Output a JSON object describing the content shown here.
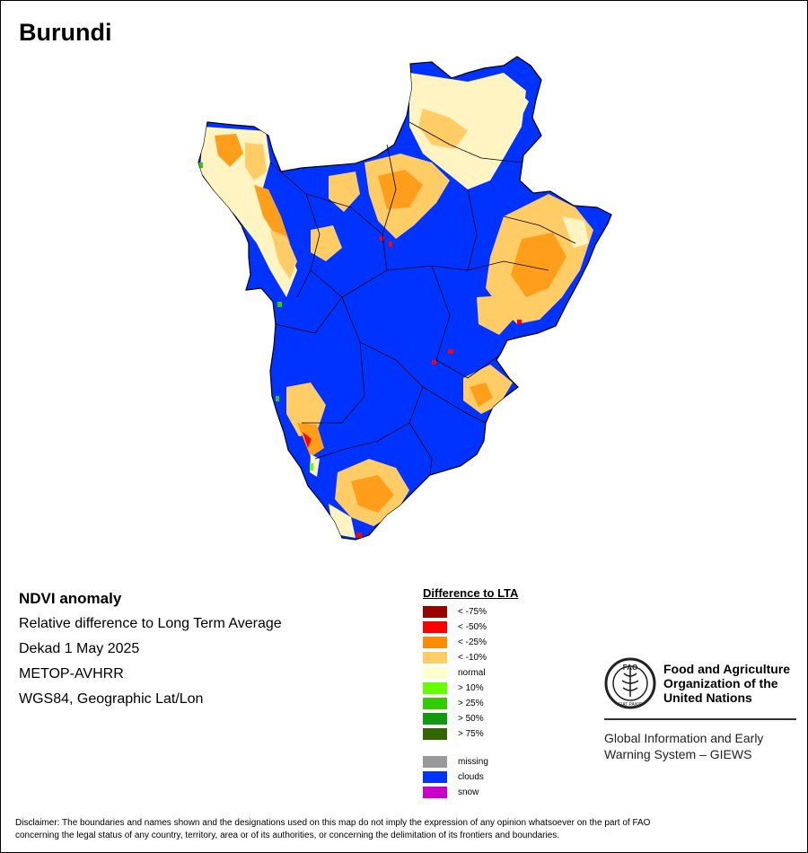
{
  "title": "Burundi",
  "info": {
    "heading": "NDVI anomaly",
    "lines": [
      "Relative difference to Long Term Average",
      "Dekad 1 May 2025",
      "METOP-AVHRR",
      "WGS84, Geographic Lat/Lon"
    ]
  },
  "legend": {
    "title": "Difference to LTA",
    "items": [
      {
        "label": "< -75%",
        "color": "#990000"
      },
      {
        "label": "< -50%",
        "color": "#ff0000"
      },
      {
        "label": "< -25%",
        "color": "#ff8c00"
      },
      {
        "label": "< -10%",
        "color": "#ffcc66"
      },
      {
        "label": "normal",
        "color": "#ffffcc"
      },
      {
        "label": "> 10%",
        "color": "#66ff00"
      },
      {
        "label": "> 25%",
        "color": "#33cc00"
      },
      {
        "label": "> 50%",
        "color": "#119911"
      },
      {
        "label": "> 75%",
        "color": "#336600"
      }
    ],
    "extra": [
      {
        "label": "missing",
        "color": "#999999"
      },
      {
        "label": "clouds",
        "color": "#0033ff"
      },
      {
        "label": "snow",
        "color": "#cc00cc"
      }
    ]
  },
  "fao": {
    "emblem_text": "FAO",
    "emblem_motto": "FIAT PANIS",
    "name_lines": [
      "Food and Agriculture",
      "Organization of the",
      "United Nations"
    ],
    "giews_lines": [
      "Global Information and Early",
      "Warning System – GIEWS"
    ]
  },
  "disclaimer_lines": [
    "Disclaimer: The boundaries and names shown and the designations used on this map do not imply the expression of any opinion whatsoever on the part of FAO",
    "concerning the legal status of any country, territory, area or of its authorities, or concerning the delimitation of its frontiers and boundaries."
  ],
  "colors": {
    "clouds": "#0033ff",
    "normal": "#fff4c2",
    "light_dry": "#ffcc66",
    "dry": "#ff8c00",
    "very_dry": "#ff0000",
    "green": "#33cc00",
    "border": "#000000"
  }
}
